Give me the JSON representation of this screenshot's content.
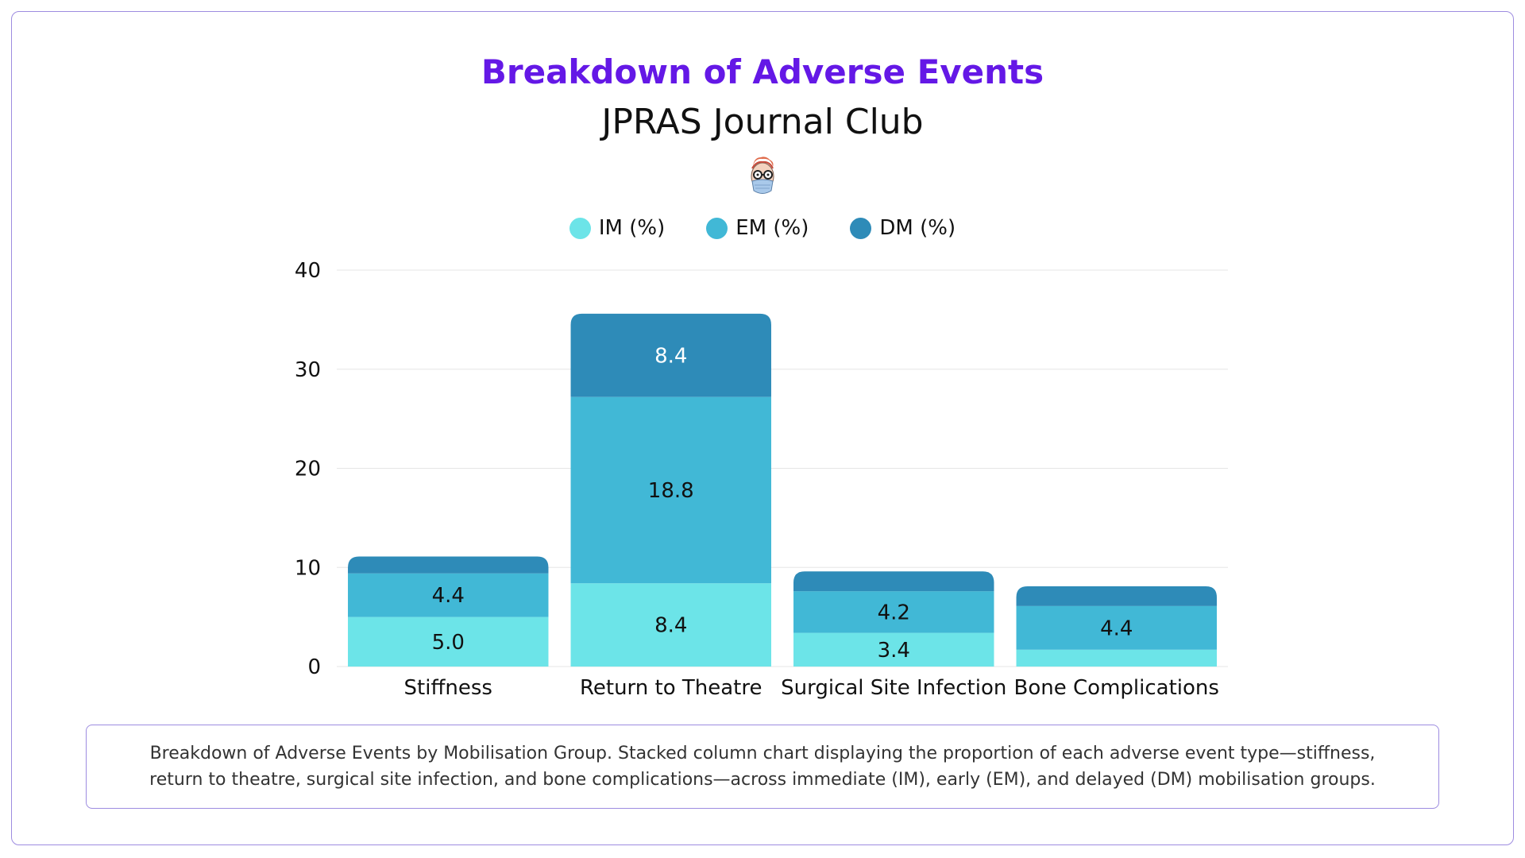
{
  "header": {
    "title": "Breakdown of Adverse Events",
    "subtitle": "JPRAS Journal Club"
  },
  "icons": {
    "avatar": "cartoon-avatar-icon"
  },
  "colors": {
    "title": "#6418e6",
    "border": "#9d8ce0",
    "IM": "#6ce4e8",
    "EM": "#41b8d6",
    "DM": "#2e8bb8"
  },
  "caption": "Breakdown of Adverse Events by Mobilisation Group. Stacked column chart displaying the proportion of each adverse event type—stiffness, return to theatre, surgical site infection, and bone complications—across immediate (IM), early (EM), and delayed (DM) mobilisation groups.",
  "chart_data": {
    "type": "bar",
    "stacked": true,
    "categories": [
      "Stiffness",
      "Return to Theatre",
      "Surgical Site Infection",
      "Bone Complications"
    ],
    "series": [
      {
        "name": "IM (%)",
        "color": "#6ce4e8",
        "values": [
          5.0,
          8.4,
          3.4,
          1.7
        ],
        "labels": [
          "5.0",
          "8.4",
          "3.4",
          ""
        ]
      },
      {
        "name": "EM (%)",
        "color": "#41b8d6",
        "values": [
          4.4,
          18.8,
          4.2,
          4.4
        ],
        "labels": [
          "4.4",
          "18.8",
          "4.2",
          "4.4"
        ]
      },
      {
        "name": "DM (%)",
        "color": "#2e8bb8",
        "values": [
          1.7,
          8.4,
          2.0,
          2.0
        ],
        "labels": [
          "",
          "8.4",
          "",
          ""
        ]
      }
    ],
    "ylim": [
      0,
      40
    ],
    "yticks": [
      "0",
      "10",
      "20",
      "30",
      "40"
    ],
    "xlabel": "",
    "ylabel": "",
    "grid": true,
    "legend": "top-center"
  }
}
